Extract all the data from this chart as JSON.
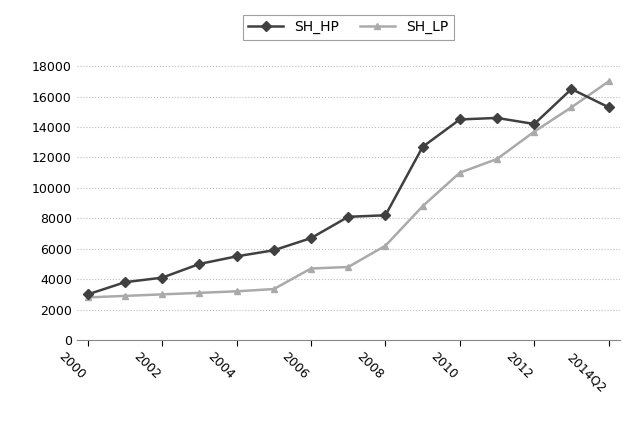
{
  "SH_HP": {
    "values": [
      3000,
      3800,
      4100,
      5000,
      5500,
      5900,
      6700,
      8100,
      8200,
      12700,
      14500,
      14600,
      14200,
      16500,
      15300
    ]
  },
  "SH_LP": {
    "values": [
      2800,
      2900,
      3000,
      3100,
      3200,
      3350,
      4700,
      4800,
      6200,
      8800,
      11000,
      11900,
      13700,
      15300,
      17000
    ]
  },
  "x_tick_labels": [
    "2000",
    "2002",
    "2004",
    "2006",
    "2008",
    "2010",
    "2012",
    "2014Q2"
  ],
  "x_tick_positions": [
    0,
    2,
    4,
    6,
    8,
    10,
    12,
    14
  ],
  "ylim": [
    0,
    19000
  ],
  "yticks": [
    0,
    2000,
    4000,
    6000,
    8000,
    10000,
    12000,
    14000,
    16000,
    18000
  ],
  "hp_color": "#404040",
  "lp_color": "#aaaaaa",
  "background_color": "#ffffff",
  "legend_hp": "SH_HP",
  "legend_lp": "SH_LP"
}
